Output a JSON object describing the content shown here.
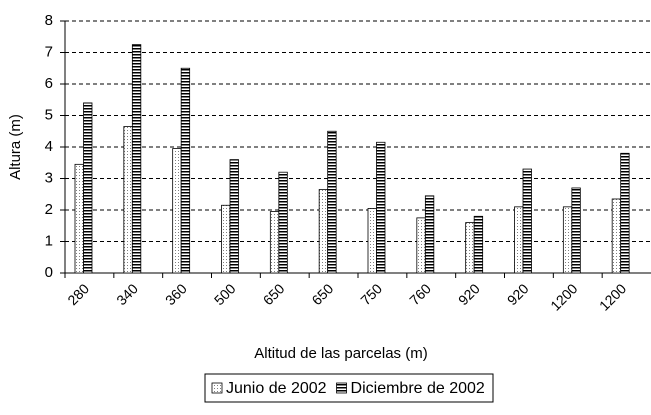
{
  "chart_data": {
    "type": "bar",
    "x_label": "Altitud de las parcelas (m)",
    "y_label": "Altura (m)",
    "categories": [
      "280",
      "340",
      "360",
      "500",
      "650",
      "650",
      "750",
      "760",
      "920",
      "920",
      "1200",
      "1200"
    ],
    "series": [
      {
        "name": "Junio de 2002",
        "color": "#808080",
        "values": [
          3.45,
          4.65,
          3.95,
          2.15,
          1.95,
          2.65,
          2.05,
          1.75,
          1.6,
          2.1,
          2.1,
          2.35
        ]
      },
      {
        "name": "Diciembre de 2002",
        "color": "#000000",
        "values": [
          5.4,
          7.25,
          6.5,
          3.6,
          3.2,
          4.5,
          4.15,
          2.45,
          1.8,
          3.3,
          2.7,
          3.8
        ]
      }
    ],
    "ylim": [
      0,
      8
    ],
    "yticks": [
      0,
      1,
      2,
      3,
      4,
      5,
      6,
      7,
      8
    ],
    "grid": true,
    "legend": "bottom"
  }
}
